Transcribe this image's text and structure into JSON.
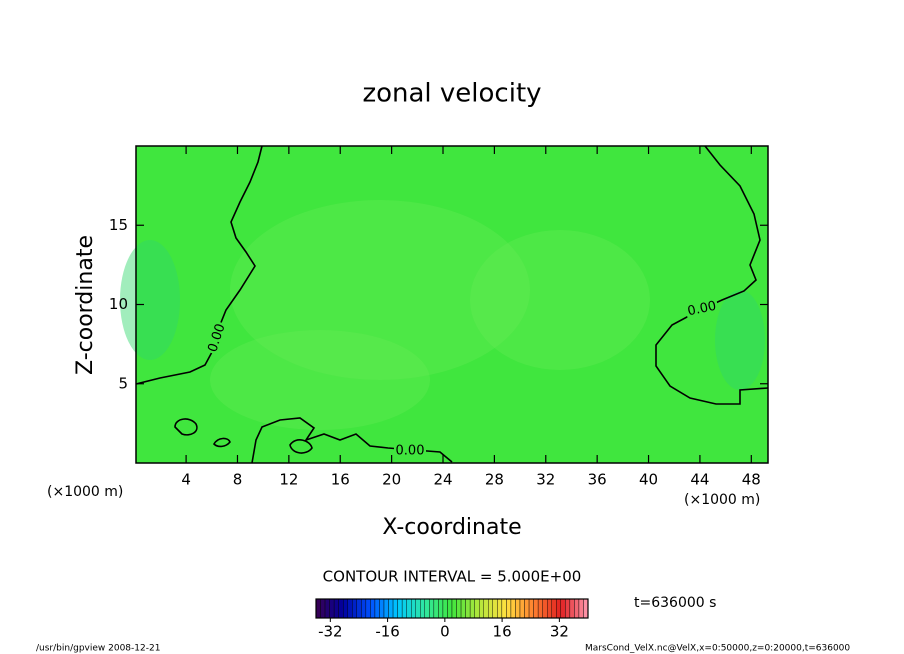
{
  "chart_data": {
    "type": "contour",
    "title": "zonal velocity",
    "x_label": "X-coordinate",
    "y_label": "Z-coordinate",
    "x_unit_label": "(×1000 m)",
    "y_unit_label": "(×1000 m)",
    "xlim": [
      0.1,
      49.3
    ],
    "xticks": [
      4,
      8,
      12,
      16,
      20,
      24,
      28,
      32,
      36,
      40,
      44,
      48
    ],
    "ylim": [
      0,
      20
    ],
    "yticks": [
      5,
      10,
      15
    ],
    "field_color": "#40e63e",
    "contours": [
      {
        "level": 0,
        "label": "0.00",
        "color": "#000000"
      }
    ],
    "contour_interval_text": "CONTOUR INTERVAL = 5.000E+00",
    "colorbar": {
      "lim": [
        -36,
        40
      ],
      "ticks": [
        -32,
        -16,
        0,
        16,
        32
      ],
      "colors": [
        "#3a0050",
        "#0000a0",
        "#0050ff",
        "#00c8ff",
        "#30e8a0",
        "#40e63e",
        "#b4e63c",
        "#ffe040",
        "#ff8030",
        "#e02020",
        "#ff9ab0"
      ]
    },
    "time_label": "t=636000 s",
    "footer_left": "/usr/bin/gpview  2008-12-21",
    "footer_right": "MarsCond_VelX.nc@VelX,x=0:50000,z=0:20000,t=636000"
  }
}
